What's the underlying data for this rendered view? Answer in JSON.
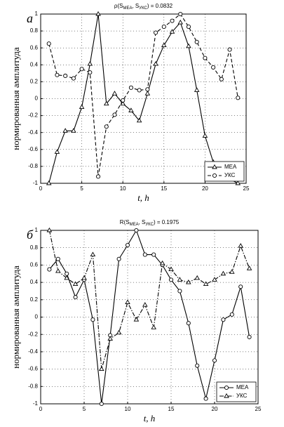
{
  "chart_data": [
    {
      "type": "line",
      "panel": "а",
      "title": [
        "ρ(S",
        "MEA",
        ", S",
        "УКС",
        ") = 0.0832"
      ],
      "x_label": "t, h",
      "y_label": "нормированная амплитуда",
      "xlim": [
        0,
        25
      ],
      "xticks": [
        0,
        5,
        10,
        15,
        20,
        25
      ],
      "ylim": [
        -1,
        1
      ],
      "yticks": [
        -1,
        -0.8,
        -0.6,
        -0.4,
        -0.2,
        0,
        0.2,
        0.4,
        0.6,
        0.8,
        1
      ],
      "grid": true,
      "legend": "lower right",
      "x": [
        1,
        2,
        3,
        4,
        5,
        6,
        7,
        8,
        9,
        10,
        11,
        12,
        13,
        14,
        15,
        16,
        17,
        18,
        19,
        20,
        21,
        22,
        23,
        24
      ],
      "series": [
        {
          "name": "MEA",
          "color": "#000000",
          "line_style": "solid",
          "marker": "triangle",
          "values": [
            -1,
            -0.63,
            -0.38,
            -0.38,
            -0.1,
            0.41,
            1,
            -0.06,
            0.06,
            -0.06,
            -0.14,
            -0.26,
            0.06,
            0.41,
            0.63,
            0.79,
            0.9,
            0.62,
            0.1,
            -0.44,
            -0.75,
            -0.9,
            -0.95,
            -1
          ]
        },
        {
          "name": "УКС",
          "color": "#000000",
          "line_style": "dashed",
          "marker": "circle",
          "values": [
            0.65,
            0.28,
            0.27,
            0.24,
            0.35,
            0.31,
            -0.92,
            -0.33,
            -0.19,
            -0.02,
            0.13,
            0.1,
            0.11,
            0.78,
            0.85,
            0.92,
            1,
            0.85,
            0.67,
            0.48,
            0.37,
            0.23,
            0.58,
            0.01
          ]
        }
      ]
    },
    {
      "type": "line",
      "panel": "б",
      "title": [
        "R(S",
        "MEA",
        ", S",
        "УКС",
        ") = 0.1975"
      ],
      "x_label": "t, h",
      "y_label": "нормированная амплитуда",
      "xlim": [
        0,
        25
      ],
      "xticks": [
        0,
        5,
        10,
        15,
        20,
        25
      ],
      "ylim": [
        -1,
        1
      ],
      "yticks": [
        -1,
        -0.8,
        -0.6,
        -0.4,
        -0.2,
        0,
        0.2,
        0.4,
        0.6,
        0.8,
        1
      ],
      "grid": true,
      "legend": "lower right",
      "x": [
        1,
        2,
        3,
        4,
        5,
        6,
        7,
        8,
        9,
        10,
        11,
        12,
        13,
        14,
        15,
        16,
        17,
        18,
        19,
        20,
        21,
        22,
        23,
        24
      ],
      "series": [
        {
          "name": "MEA",
          "color": "#000000",
          "line_style": "solid",
          "marker": "circle",
          "values": [
            0.55,
            0.67,
            0.5,
            0.23,
            0.43,
            -0.03,
            -1,
            -0.21,
            0.67,
            0.83,
            1,
            0.72,
            0.72,
            0.6,
            0.43,
            0.3,
            -0.07,
            -0.56,
            -0.94,
            -0.5,
            -0.03,
            0.03,
            0.35,
            -0.23
          ]
        },
        {
          "name": "УКС",
          "color": "#000000",
          "line_style": "dashdot",
          "marker": "triangle",
          "values": [
            1,
            0.53,
            0.45,
            0.38,
            0.45,
            0.72,
            -0.6,
            -0.25,
            -0.18,
            0.17,
            -0.03,
            0.14,
            -0.12,
            0.62,
            0.55,
            0.43,
            0.4,
            0.45,
            0.38,
            0.43,
            0.5,
            0.52,
            0.82,
            0.56
          ]
        }
      ]
    }
  ]
}
